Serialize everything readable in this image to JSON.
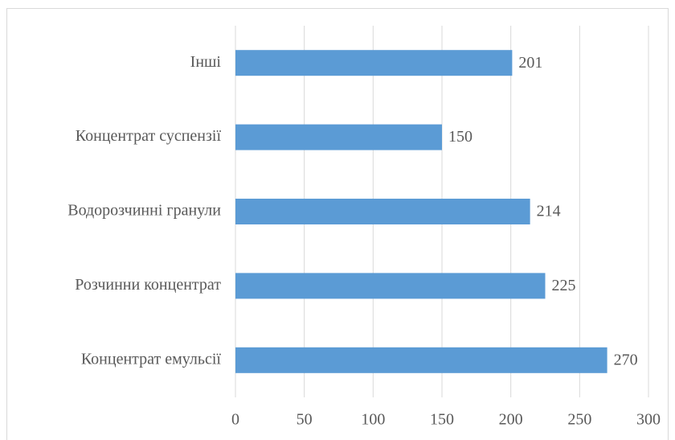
{
  "chart_data": {
    "type": "bar",
    "orientation": "horizontal",
    "categories": [
      "Інші",
      "Концентрат суспензії",
      "Водорозчинні гранули",
      "Розчинни концентрат",
      "Концентрат емульсії"
    ],
    "values": [
      201,
      150,
      214,
      225,
      270
    ],
    "color": "#5b9bd5",
    "xlim": [
      0,
      300
    ],
    "xticks": [
      0,
      50,
      100,
      150,
      200,
      250,
      300
    ],
    "grid": true
  }
}
